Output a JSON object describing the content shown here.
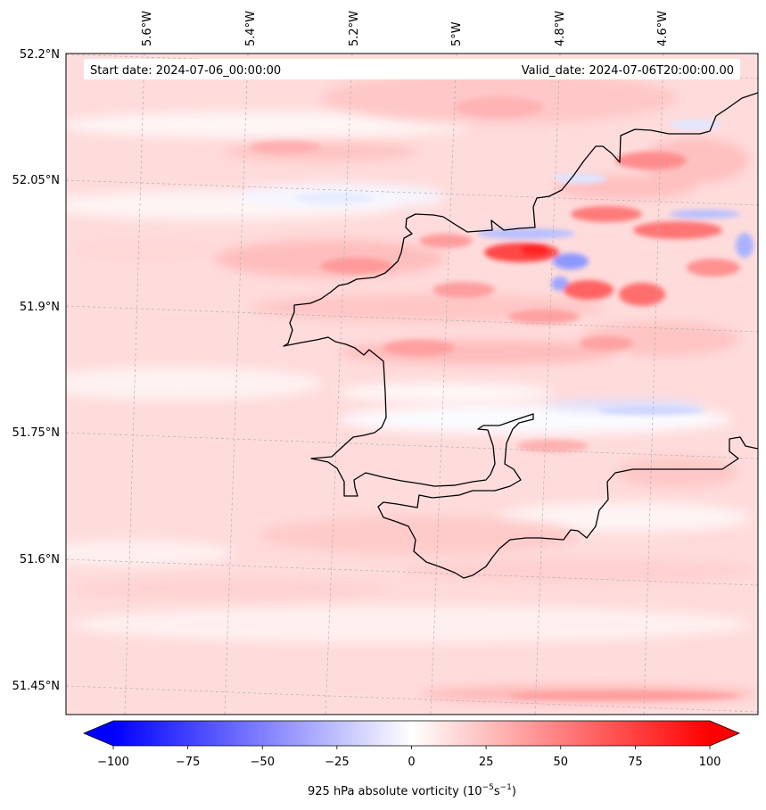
{
  "header": {
    "start_date": "Start date: 2024-07-06_00:00:00",
    "valid_date": "Valid_date: 2024-07-06T20:00:00.00"
  },
  "axes": {
    "lon_labels": [
      "5.6°W",
      "5.4°W",
      "5.2°W",
      "5°W",
      "4.8°W",
      "4.6°W"
    ],
    "lat_labels": [
      "52.2°N",
      "52.05°N",
      "51.9°N",
      "51.75°N",
      "51.6°N",
      "51.45°N"
    ]
  },
  "colorbar": {
    "tick_labels": [
      "−100",
      "−75",
      "−50",
      "−25",
      "0",
      "25",
      "50",
      "75",
      "100"
    ],
    "ticks": [
      -100,
      -75,
      -50,
      -25,
      0,
      25,
      50,
      75,
      100
    ],
    "label_main": "925 hPa absolute vorticity (10",
    "label_exp1": "−5",
    "label_mid": "s",
    "label_exp2": "−1",
    "label_end": ")",
    "range": [
      -100,
      100
    ],
    "low_color": "#0000ff",
    "mid_color": "#ffffff",
    "high_color": "#ff0000"
  },
  "colors": {
    "coastline": "#000000",
    "gridline": "#b0b0b0",
    "weak_positive": "#ffe6e6",
    "moderate_positive": "#ffc4c4",
    "strong_positive": "#ff7070",
    "weak_negative": "#eef0ff",
    "strong_negative": "#9090ff"
  }
}
